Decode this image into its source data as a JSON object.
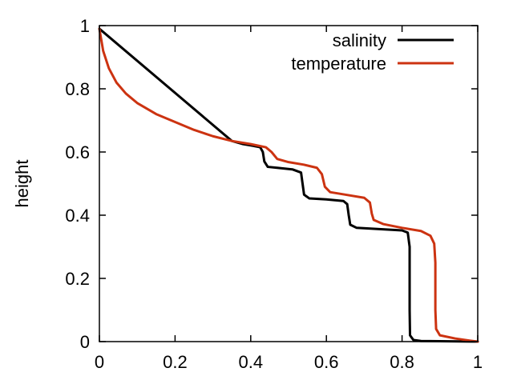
{
  "chart_data": {
    "type": "line",
    "title": "",
    "xlabel": "",
    "ylabel": "height",
    "xlim": [
      0,
      1
    ],
    "ylim": [
      0,
      1
    ],
    "x_ticks": [
      "0",
      "0.2",
      "0.4",
      "0.6",
      "0.8",
      "1"
    ],
    "y_ticks": [
      "0",
      "0.2",
      "0.4",
      "0.6",
      "0.8",
      "1"
    ],
    "grid": false,
    "legend_position": "top-right",
    "series": [
      {
        "name": "salinity",
        "color": "#000000",
        "points": [
          [
            0.0,
            0.99
          ],
          [
            0.35,
            0.635
          ],
          [
            0.38,
            0.625
          ],
          [
            0.405,
            0.62
          ],
          [
            0.425,
            0.615
          ],
          [
            0.432,
            0.6
          ],
          [
            0.436,
            0.57
          ],
          [
            0.445,
            0.553
          ],
          [
            0.47,
            0.55
          ],
          [
            0.51,
            0.545
          ],
          [
            0.533,
            0.535
          ],
          [
            0.537,
            0.5
          ],
          [
            0.541,
            0.465
          ],
          [
            0.555,
            0.453
          ],
          [
            0.6,
            0.45
          ],
          [
            0.645,
            0.445
          ],
          [
            0.655,
            0.435
          ],
          [
            0.659,
            0.4
          ],
          [
            0.663,
            0.37
          ],
          [
            0.68,
            0.36
          ],
          [
            0.74,
            0.356
          ],
          [
            0.8,
            0.352
          ],
          [
            0.815,
            0.345
          ],
          [
            0.82,
            0.3
          ],
          [
            0.82,
            0.1
          ],
          [
            0.821,
            0.02
          ],
          [
            0.83,
            0.005
          ],
          [
            0.85,
            0.002
          ],
          [
            1.0,
            0.0
          ]
        ]
      },
      {
        "name": "temperature",
        "color": "#cc3311",
        "points": [
          [
            0.0,
            0.99
          ],
          [
            0.01,
            0.92
          ],
          [
            0.025,
            0.865
          ],
          [
            0.045,
            0.82
          ],
          [
            0.07,
            0.785
          ],
          [
            0.1,
            0.755
          ],
          [
            0.15,
            0.72
          ],
          [
            0.2,
            0.695
          ],
          [
            0.25,
            0.67
          ],
          [
            0.3,
            0.65
          ],
          [
            0.35,
            0.635
          ],
          [
            0.4,
            0.625
          ],
          [
            0.44,
            0.615
          ],
          [
            0.455,
            0.6
          ],
          [
            0.47,
            0.578
          ],
          [
            0.5,
            0.568
          ],
          [
            0.54,
            0.56
          ],
          [
            0.575,
            0.55
          ],
          [
            0.588,
            0.53
          ],
          [
            0.596,
            0.49
          ],
          [
            0.61,
            0.473
          ],
          [
            0.65,
            0.465
          ],
          [
            0.7,
            0.455
          ],
          [
            0.715,
            0.44
          ],
          [
            0.72,
            0.405
          ],
          [
            0.725,
            0.385
          ],
          [
            0.75,
            0.372
          ],
          [
            0.8,
            0.36
          ],
          [
            0.85,
            0.35
          ],
          [
            0.875,
            0.335
          ],
          [
            0.885,
            0.31
          ],
          [
            0.888,
            0.25
          ],
          [
            0.888,
            0.1
          ],
          [
            0.89,
            0.04
          ],
          [
            0.9,
            0.02
          ],
          [
            0.94,
            0.01
          ],
          [
            0.98,
            0.003
          ],
          [
            1.0,
            0.0
          ]
        ]
      }
    ]
  }
}
